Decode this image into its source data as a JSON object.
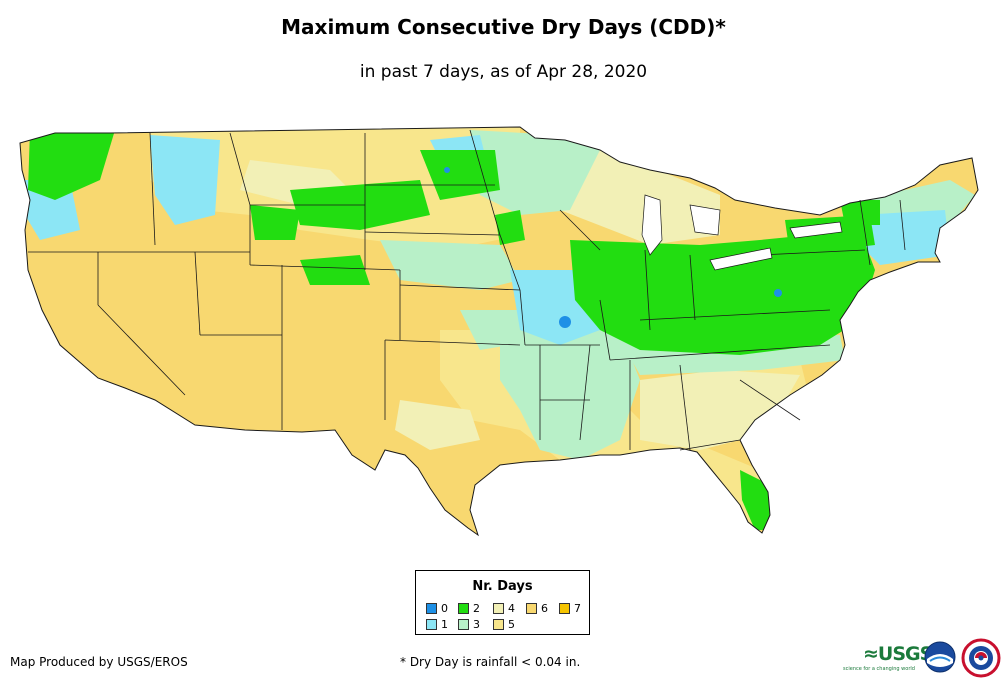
{
  "header": {
    "title": "Maximum Consecutive Dry Days (CDD)*",
    "subtitle": "in past 7 days, as of Apr 28, 2020"
  },
  "legend": {
    "title": "Nr. Days",
    "items": [
      {
        "label": "0",
        "color": "#1e90e6"
      },
      {
        "label": "1",
        "color": "#8ce6f5"
      },
      {
        "label": "2",
        "color": "#22dd11"
      },
      {
        "label": "3",
        "color": "#b8f0c8"
      },
      {
        "label": "4",
        "color": "#f2f0b6"
      },
      {
        "label": "5",
        "color": "#f8e68c"
      },
      {
        "label": "6",
        "color": "#f8d870"
      },
      {
        "label": "7",
        "color": "#f5c400"
      }
    ]
  },
  "footer": {
    "credit": "Map Produced by USGS/EROS",
    "footnote": "* Dry Day is rainfall < 0.04 in.",
    "usgs_logo_text": "≈USGS",
    "usgs_tagline": "science for a changing world"
  },
  "colors": {
    "border": "#1a1a1a",
    "background": "#ffffff"
  },
  "icons": [
    "usgs-logo",
    "noaa-logo",
    "nws-logo"
  ]
}
